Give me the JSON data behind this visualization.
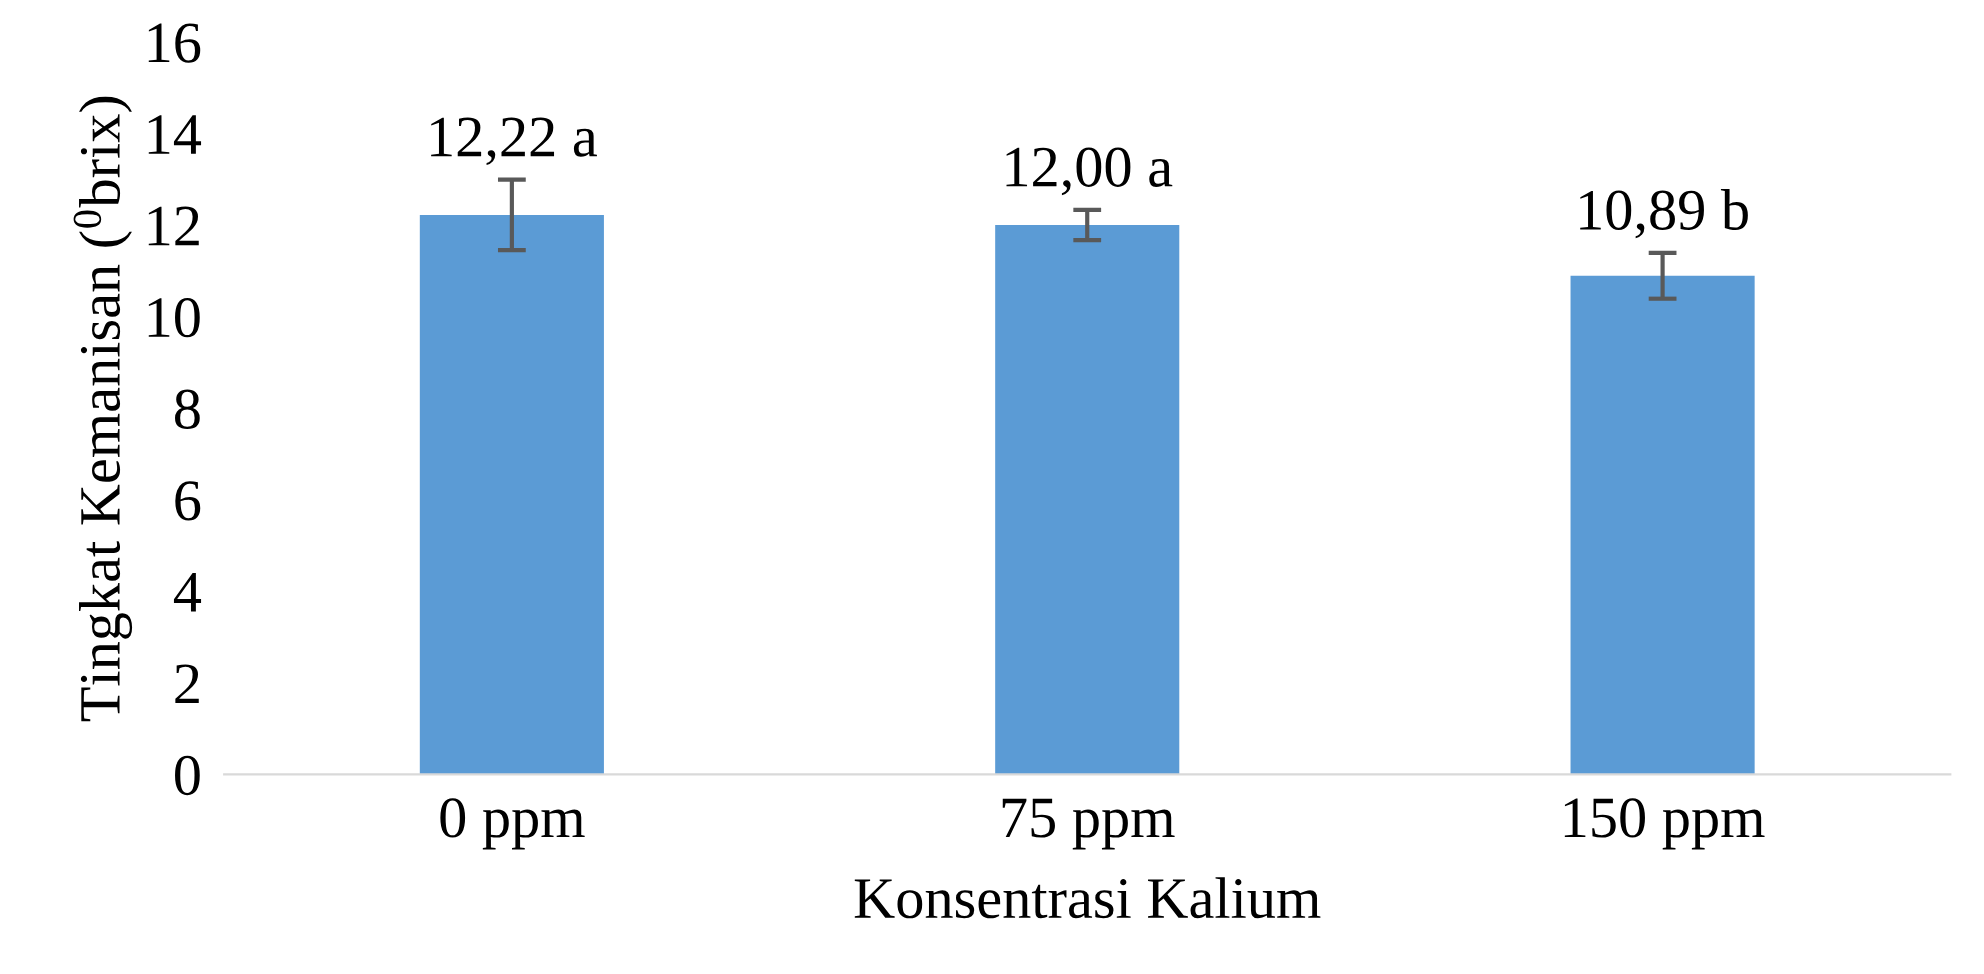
{
  "chart_data": {
    "type": "bar",
    "xlabel": "Konsentrasi Kalium",
    "ylabel": "Tingkat Kemanisan ($^{0}$brix)",
    "categories": [
      "0 ppm",
      "75 ppm",
      "150 ppm"
    ],
    "values": [
      12.22,
      12.0,
      10.89
    ],
    "errors": [
      0.77,
      0.33,
      0.5
    ],
    "value_labels": [
      "12,22 a",
      "12,00 a",
      "10,89 b"
    ],
    "color": "#5b9bd5",
    "ylim": [
      0,
      16
    ],
    "yticks": [
      0,
      2,
      4,
      6,
      8,
      10,
      12,
      14,
      16
    ],
    "grid": false,
    "legend": false
  }
}
